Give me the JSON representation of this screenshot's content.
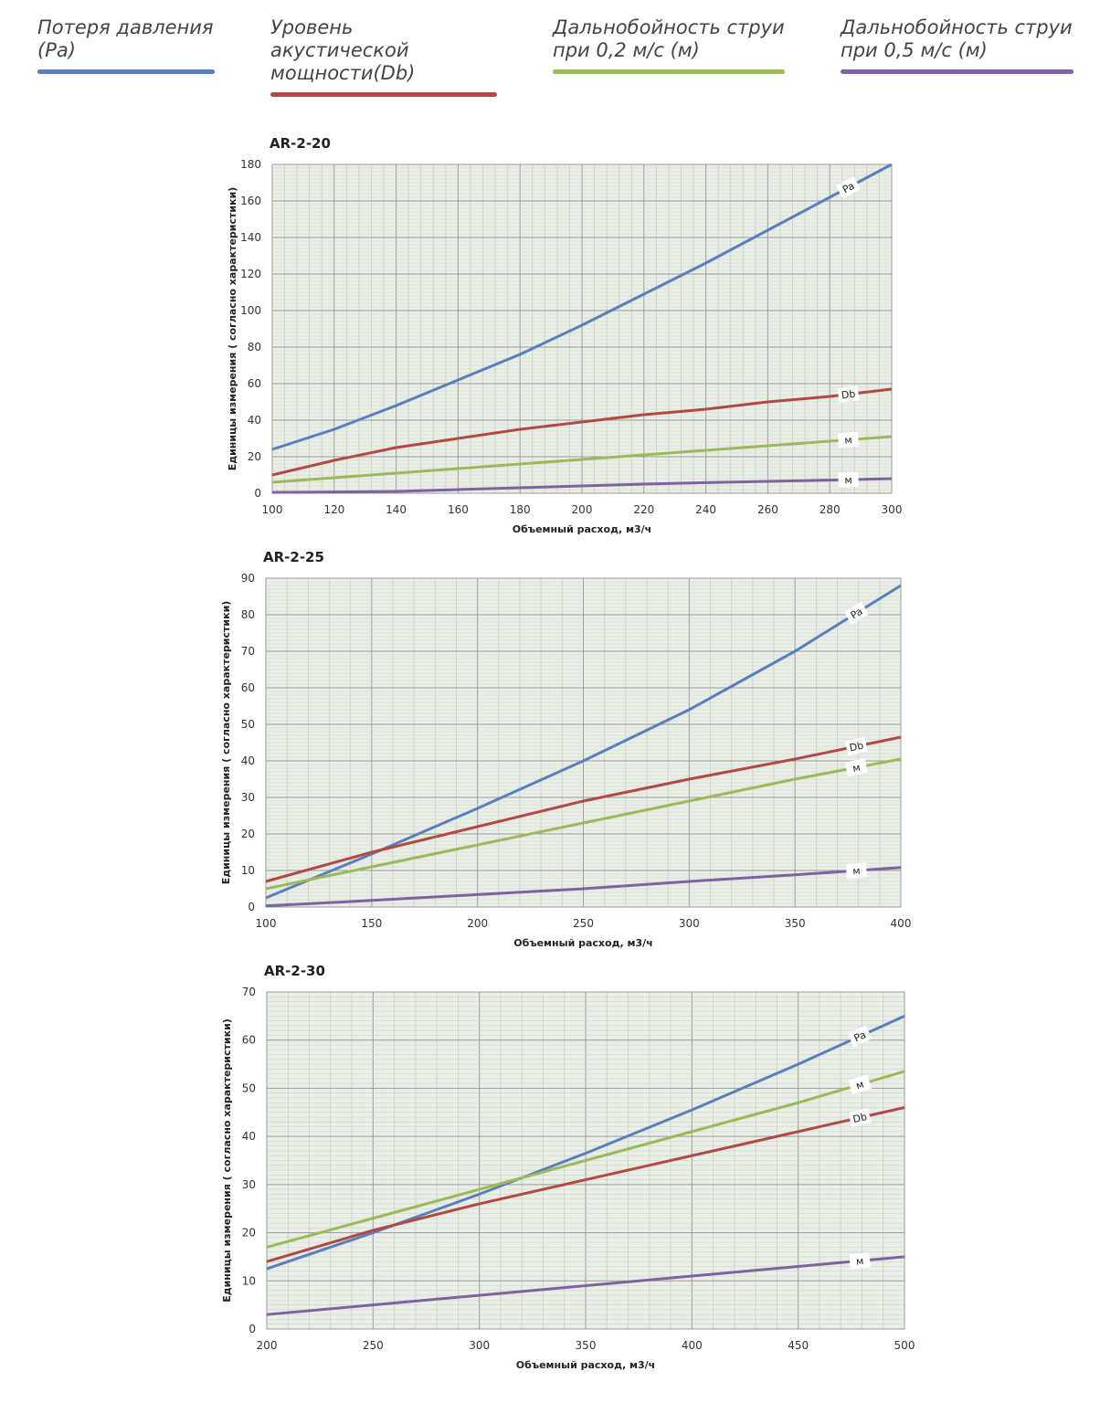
{
  "legend": [
    {
      "label": "Потеря давления\n(Pa)",
      "color": "#5b7fbd"
    },
    {
      "label": "Уровень акустической\nмощности(Db)",
      "color": "#b14a45"
    },
    {
      "label": "Дальнобойность струи\nпри 0,2 м/с (м)",
      "color": "#9bbb59"
    },
    {
      "label": "Дальнобойность струи\nпри 0,5 м/с (м)",
      "color": "#7e62a1"
    }
  ],
  "chart_data": [
    {
      "type": "line",
      "title": "AR-2-20",
      "xlabel": "Объемный расход, м3/ч",
      "ylabel": "Единицы измерения ( согласно характеристики)",
      "xlim": [
        100,
        300
      ],
      "ylim": [
        0,
        180
      ],
      "xticks": [
        100,
        120,
        140,
        160,
        180,
        200,
        220,
        240,
        260,
        280,
        300
      ],
      "yticks": [
        0,
        20,
        40,
        60,
        80,
        100,
        120,
        140,
        160,
        180
      ],
      "x": [
        100,
        120,
        140,
        160,
        180,
        200,
        220,
        240,
        260,
        280,
        300
      ],
      "series": [
        {
          "name": "Pa",
          "label": "Pa",
          "color": "#5b7fbd",
          "values": [
            24,
            35,
            48,
            62,
            76,
            92,
            109,
            126,
            144,
            162,
            180
          ]
        },
        {
          "name": "Db",
          "label": "Db",
          "color": "#b14a45",
          "values": [
            10,
            18,
            25,
            30,
            35,
            39,
            43,
            46,
            50,
            53,
            57
          ]
        },
        {
          "name": "м (0,2 м/с)",
          "label": "м",
          "color": "#9bbb59",
          "values": [
            6,
            8.5,
            11,
            13.5,
            16,
            18.5,
            21,
            23.5,
            26,
            28.5,
            31
          ]
        },
        {
          "name": "м (0,5 м/с)",
          "label": "м",
          "color": "#7e62a1",
          "values": [
            0.5,
            0.7,
            1,
            2,
            3,
            4,
            5,
            5.8,
            6.5,
            7.2,
            8
          ]
        }
      ]
    },
    {
      "type": "line",
      "title": "AR-2-25",
      "xlabel": "Объемный расход, м3/ч",
      "ylabel": "Единицы измерения ( согласно характеристики)",
      "xlim": [
        100,
        400
      ],
      "ylim": [
        0,
        90
      ],
      "xticks": [
        100,
        150,
        200,
        250,
        300,
        350,
        400
      ],
      "yticks": [
        0,
        10,
        20,
        30,
        40,
        50,
        60,
        70,
        80,
        90
      ],
      "x": [
        100,
        150,
        200,
        250,
        300,
        350,
        400
      ],
      "series": [
        {
          "name": "Pa",
          "label": "Pa",
          "color": "#5b7fbd",
          "values": [
            2.5,
            14.5,
            27,
            40,
            54,
            70,
            88
          ]
        },
        {
          "name": "Db",
          "label": "Db",
          "color": "#b14a45",
          "values": [
            7,
            15,
            22,
            29,
            35,
            40.5,
            46.5
          ]
        },
        {
          "name": "м (0,2 м/с)",
          "label": "м",
          "color": "#9bbb59",
          "values": [
            5,
            11,
            17,
            23,
            29,
            35,
            40.5
          ]
        },
        {
          "name": "м (0,5 м/с)",
          "label": "м",
          "color": "#7e62a1",
          "values": [
            0.3,
            1.8,
            3.4,
            5,
            7,
            8.8,
            10.8
          ]
        }
      ]
    },
    {
      "type": "line",
      "title": "AR-2-30",
      "xlabel": "Объемный расход, м3/ч",
      "ylabel": "Единицы измерения ( согласно характеристики)",
      "xlim": [
        200,
        500
      ],
      "ylim": [
        0,
        70
      ],
      "xticks": [
        200,
        250,
        300,
        350,
        400,
        450,
        500
      ],
      "yticks": [
        0,
        10,
        20,
        30,
        40,
        50,
        60,
        70
      ],
      "x": [
        200,
        250,
        300,
        350,
        400,
        450,
        500
      ],
      "series": [
        {
          "name": "Pa",
          "label": "Pa",
          "color": "#5b7fbd",
          "values": [
            12.5,
            20,
            28,
            36.5,
            45.5,
            55,
            65
          ]
        },
        {
          "name": "м (0,2 м/с)",
          "label": "м",
          "color": "#9bbb59",
          "values": [
            17,
            23,
            29,
            35,
            41,
            47,
            53.5
          ]
        },
        {
          "name": "Db",
          "label": "Db",
          "color": "#b14a45",
          "values": [
            14,
            20.5,
            26,
            31,
            36,
            41,
            46
          ]
        },
        {
          "name": "м (0,5 м/с)",
          "label": "м",
          "color": "#7e62a1",
          "values": [
            3,
            5,
            7,
            9,
            11,
            13,
            15
          ]
        }
      ]
    }
  ]
}
